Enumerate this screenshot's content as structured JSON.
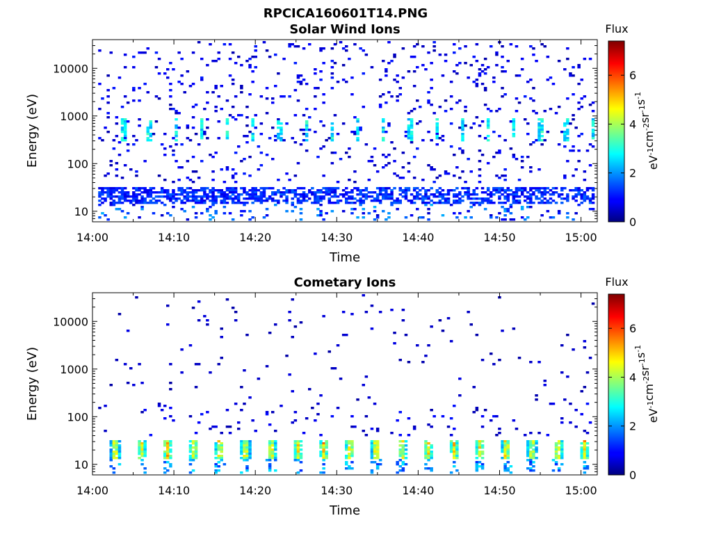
{
  "figure": {
    "title": "RPCICA160601T14.PNG"
  },
  "chart_data": [
    {
      "type": "heatmap",
      "title": "Solar Wind Ions",
      "xlabel": "Time",
      "ylabel": "Energy (eV)",
      "xlim": [
        "14:00",
        "15:02"
      ],
      "ylim": [
        6,
        40000
      ],
      "yscale": "log",
      "x_ticks": [
        "14:00",
        "14:10",
        "14:20",
        "14:30",
        "14:40",
        "14:50",
        "15:00"
      ],
      "y_ticks": [
        "10",
        "100",
        "1000",
        "10000"
      ],
      "colorbar": {
        "label": "Flux",
        "unit": "eV-1cm-2sr-1s-1",
        "range": [
          0,
          7.4
        ],
        "ticks": [
          "0",
          "2",
          "4",
          "6"
        ],
        "colormap": "jet"
      },
      "features": {
        "sweep_period_min": 3.2,
        "sweep_first_min": 3.8,
        "band_energy_eV": 500,
        "band_flux": 3.0,
        "low_energy_eV": [
          15,
          35
        ],
        "low_energy_flux": 1.4,
        "background_flux": 0.6
      }
    },
    {
      "type": "heatmap",
      "title": "Cometary Ions",
      "xlabel": "Time",
      "ylabel": "Energy (eV)",
      "xlim": [
        "14:00",
        "15:02"
      ],
      "ylim": [
        6,
        40000
      ],
      "yscale": "log",
      "x_ticks": [
        "14:00",
        "14:10",
        "14:20",
        "14:30",
        "14:40",
        "14:50",
        "15:00"
      ],
      "y_ticks": [
        "10",
        "100",
        "1000",
        "10000"
      ],
      "colorbar": {
        "label": "Flux",
        "unit": "eV-1cm-2sr-1s-1",
        "range": [
          0,
          7.4
        ],
        "ticks": [
          "0",
          "2",
          "4",
          "6"
        ],
        "colormap": "jet"
      },
      "features": {
        "sweep_period_min": 3.2,
        "sweep_first_min": 2.8,
        "band_energy_eV": [
          13,
          35
        ],
        "band_peak_flux": 5.3,
        "background_flux": 0.5
      }
    }
  ]
}
